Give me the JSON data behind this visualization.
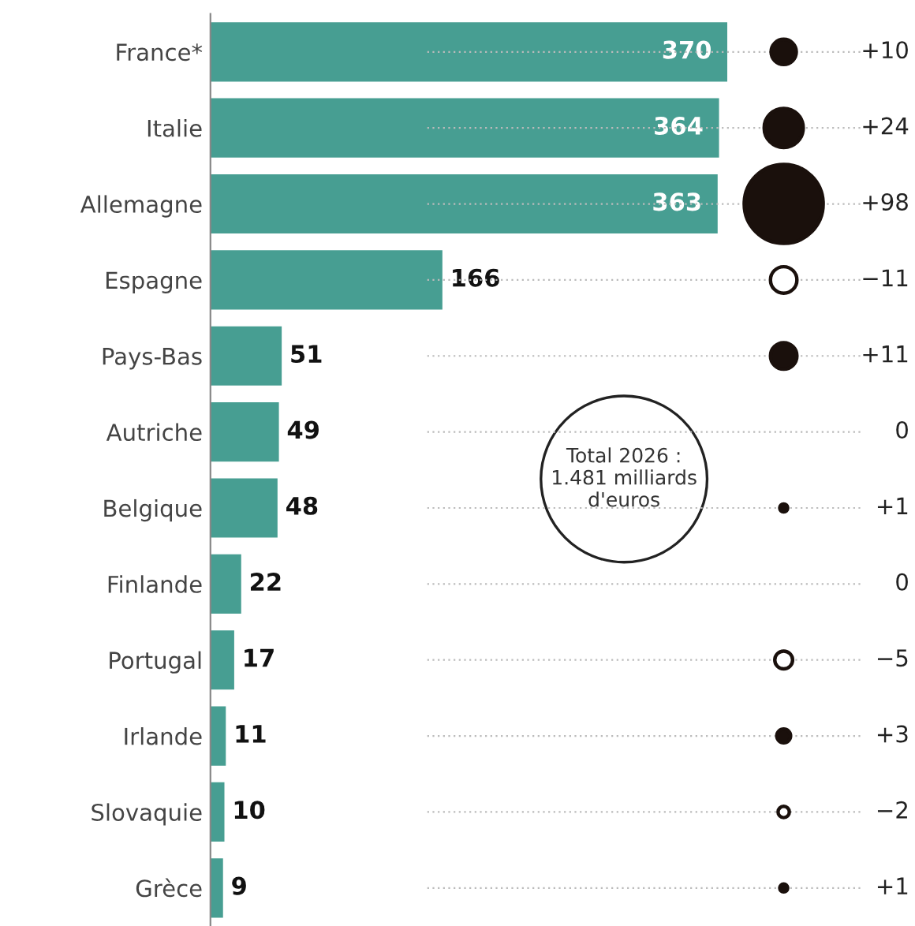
{
  "chart_data": [
    {
      "type": "bar",
      "orientation": "horizontal",
      "categories": [
        "France*",
        "Italie",
        "Allemagne",
        "Espagne",
        "Pays-Bas",
        "Autriche",
        "Belgique",
        "Finlande",
        "Portugal",
        "Irlande",
        "Slovaquie",
        "Grèce"
      ],
      "values": [
        370,
        364,
        363,
        166,
        51,
        49,
        48,
        22,
        17,
        11,
        10,
        9
      ],
      "color": "#479e92",
      "data_labels": true,
      "tick_labels": "y",
      "annotations": [
        "Total 2026 :\n1.481 milliards\nd'euros"
      ]
    },
    {
      "type": "other",
      "categories": [
        null,
        null,
        null,
        null,
        null,
        null,
        null,
        null,
        null,
        null,
        null,
        null
      ],
      "values": [
        10,
        24,
        98,
        -11,
        11,
        0,
        1,
        0,
        -5,
        3,
        -2,
        1
      ],
      "value_labels": [
        "+10",
        "+24",
        "+98",
        "−11",
        "+11",
        "0",
        "+1",
        "0",
        "−5",
        "+3",
        "−2",
        "+1"
      ],
      "colors": [
        "#1a100c",
        "#1a100c",
        "#1a100c",
        "#ffffff",
        "#1a100c",
        "#ffffff",
        "#1a100c",
        "#ffffff",
        "#ffffff",
        "#1a100c",
        "#ffffff",
        "#1a100c"
      ]
    }
  ]
}
